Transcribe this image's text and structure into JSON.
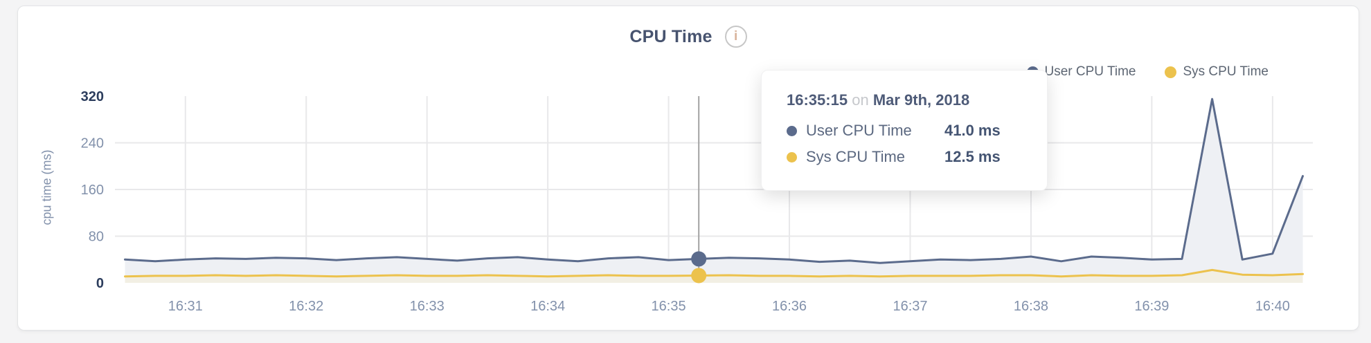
{
  "header": {
    "title": "CPU Time",
    "info_glyph": "i"
  },
  "legend": {
    "items": [
      {
        "label": "User CPU Time",
        "color": "#5b6b8c"
      },
      {
        "label": "Sys CPU Time",
        "color": "#ecc24d"
      }
    ]
  },
  "tooltip": {
    "time": "16:35:15",
    "connector": "on",
    "date": "Mar 9th, 2018",
    "rows": [
      {
        "label": "User CPU Time",
        "value": "41.0 ms",
        "color": "#5b6b8c"
      },
      {
        "label": "Sys CPU Time",
        "value": "12.5 ms",
        "color": "#ecc24d"
      }
    ]
  },
  "chart_data": {
    "type": "area",
    "title": "CPU Time",
    "ylabel": "cpu time (ms)",
    "ylim": [
      0,
      320
    ],
    "y_ticks": [
      0,
      80,
      160,
      240,
      320
    ],
    "x_ticks": [
      "16:31",
      "16:32",
      "16:33",
      "16:34",
      "16:35",
      "16:36",
      "16:37",
      "16:38",
      "16:39",
      "16:40"
    ],
    "axis_start": "16:30:25",
    "axis_end": "16:40:20",
    "start_time": "16:30:30",
    "sample_interval_sec": 15,
    "grid": true,
    "legend_position": "top-right",
    "hover_index": 19,
    "hover_time": "16:35:15",
    "hover_date": "Mar 9th, 2018",
    "series": [
      {
        "name": "User CPU Time",
        "color": "#5b6b8c",
        "fill": "#eef0f4",
        "values": [
          40,
          37,
          40,
          42,
          41,
          43,
          42,
          39,
          42,
          44,
          41,
          38,
          42,
          44,
          40,
          37,
          42,
          44,
          39,
          41,
          43,
          42,
          40,
          36,
          38,
          34,
          37,
          40,
          39,
          41,
          45,
          37,
          45,
          43,
          40,
          41,
          315,
          40,
          50,
          183
        ]
      },
      {
        "name": "Sys CPU Time",
        "color": "#ecc24d",
        "fill": "#f2efe4",
        "values": [
          11,
          12,
          12,
          13,
          12,
          13,
          12,
          11,
          12,
          13,
          12,
          12,
          13,
          12,
          11,
          12,
          13,
          12,
          12,
          12.5,
          13,
          12,
          12,
          11,
          12,
          11,
          12,
          12,
          12,
          13,
          13,
          11,
          13,
          12,
          12,
          13,
          22,
          14,
          13,
          15
        ]
      }
    ],
    "colors": {
      "grid": "#e8e8ea",
      "crosshair": "#a3a3a3",
      "tick_minor": "#8291ab",
      "tick_strong": "#2c3d5d"
    }
  }
}
